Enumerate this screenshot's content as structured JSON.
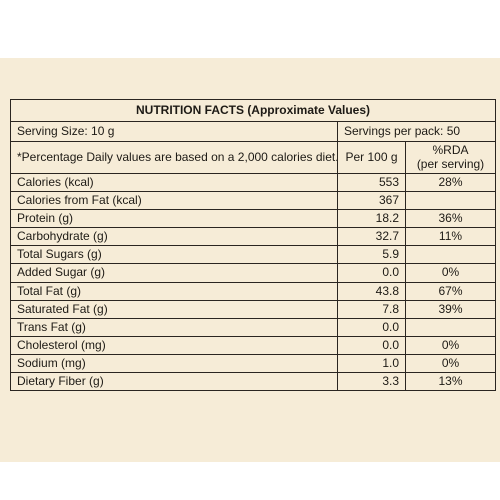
{
  "table": {
    "title": "NUTRITION FACTS (Approximate Values)",
    "serving_size": "Serving Size: 10 g",
    "servings_per_pack": "Servings per pack: 50",
    "note": "*Percentage Daily values are based on a 2,000 calories diet. Your daily values may be higher or lower depending on your calorie needs.",
    "col_per100": "Per 100 g",
    "col_rda_line1": "%RDA",
    "col_rda_line2": "(per serving)",
    "rows": [
      {
        "label": "Calories (kcal)",
        "value": "553",
        "rda": "28%"
      },
      {
        "label": "Calories from Fat (kcal)",
        "value": "367",
        "rda": ""
      },
      {
        "label": "Protein (g)",
        "value": "18.2",
        "rda": "36%"
      },
      {
        "label": "Carbohydrate (g)",
        "value": "32.7",
        "rda": "11%"
      },
      {
        "label": "Total Sugars (g)",
        "value": "5.9",
        "rda": ""
      },
      {
        "label": "Added Sugar (g)",
        "value": "0.0",
        "rda": "0%"
      },
      {
        "label": "Total Fat (g)",
        "value": "43.8",
        "rda": "67%"
      },
      {
        "label": "Saturated Fat (g)",
        "value": "7.8",
        "rda": "39%"
      },
      {
        "label": "Trans Fat (g)",
        "value": "0.0",
        "rda": ""
      },
      {
        "label": "Cholesterol (mg)",
        "value": "0.0",
        "rda": "0%"
      },
      {
        "label": "Sodium (mg)",
        "value": "1.0",
        "rda": "0%"
      },
      {
        "label": "Dietary Fiber (g)",
        "value": "3.3",
        "rda": "13%"
      }
    ]
  },
  "colors": {
    "panel_background": "#f6ecd7",
    "border": "#2a2520",
    "text": "#1d1a15"
  }
}
